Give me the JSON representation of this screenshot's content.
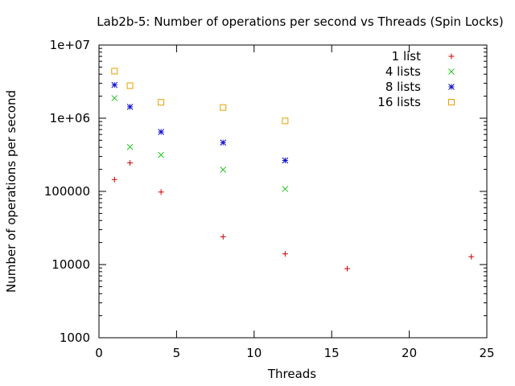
{
  "chart_data": {
    "type": "scatter",
    "title": "Lab2b-5: Number of operations per second vs Threads (Spin Locks)",
    "xlabel": "Threads",
    "ylabel": "Number of operations per second",
    "xlim": [
      0,
      25
    ],
    "ylim": [
      1000,
      10000000
    ],
    "yscale": "log",
    "grid": false,
    "legend_position": "top-right",
    "x_ticks": [
      0,
      5,
      10,
      15,
      20,
      25
    ],
    "x_tick_labels": [
      "0",
      "5",
      "10",
      "15",
      "20",
      "25"
    ],
    "y_ticks": [
      1000,
      10000,
      100000,
      1000000,
      10000000
    ],
    "y_tick_labels": [
      "1000",
      "10000",
      "100000",
      "1e+06",
      "1e+07"
    ],
    "series": [
      {
        "name": "1 list",
        "marker": "plus",
        "color": "#d00000",
        "points": [
          [
            1,
            145000
          ],
          [
            2,
            245000
          ],
          [
            4,
            98000
          ],
          [
            8,
            24000
          ],
          [
            12,
            14000
          ],
          [
            16,
            8800
          ],
          [
            24,
            12800
          ]
        ]
      },
      {
        "name": "4 lists",
        "marker": "cross",
        "color": "#22c322",
        "points": [
          [
            1,
            1880000
          ],
          [
            2,
            405000
          ],
          [
            4,
            315000
          ],
          [
            8,
            198000
          ],
          [
            12,
            108000
          ]
        ]
      },
      {
        "name": "8 lists",
        "marker": "asterisk",
        "color": "#1010d0",
        "points": [
          [
            1,
            2850000
          ],
          [
            2,
            1430000
          ],
          [
            4,
            650000
          ],
          [
            8,
            465000
          ],
          [
            12,
            265000
          ]
        ]
      },
      {
        "name": "16 lists",
        "marker": "square",
        "color": "#e6a000",
        "points": [
          [
            1,
            4400000
          ],
          [
            2,
            2780000
          ],
          [
            4,
            1650000
          ],
          [
            8,
            1400000
          ],
          [
            12,
            920000
          ]
        ]
      }
    ]
  }
}
